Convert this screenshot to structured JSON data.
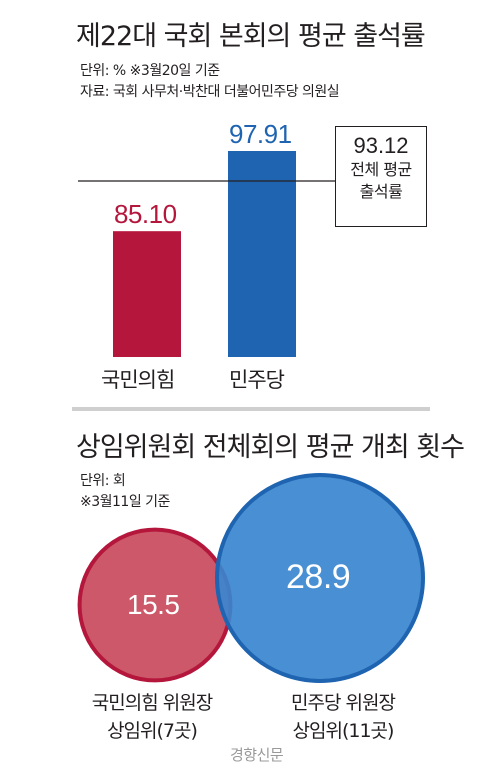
{
  "chart_data": [
    {
      "type": "bar",
      "title": "제22대 국회 본회의 평균 출석률",
      "unit_note": "단위: %  ※3월20일 기준",
      "source": "자료: 국회 사무처·박찬대 더불어민주당 의원실",
      "categories": [
        "국민의힘",
        "민주당"
      ],
      "values": [
        85.1,
        97.91
      ],
      "value_labels": [
        "85.10",
        "97.91"
      ],
      "colors": [
        "#b5173c",
        "#1f64b0"
      ],
      "reference_line": {
        "value": 93.12,
        "value_label": "93.12",
        "label_lines": [
          "전체 평균",
          "출석률"
        ]
      }
    },
    {
      "type": "bubble",
      "title": "상임위원회 전체회의 평균 개최 횟수",
      "unit_note": "단위: 회",
      "date_note": "※3월11일 기준",
      "items": [
        {
          "value": 15.5,
          "value_label": "15.5",
          "label_lines": [
            "국민의힘 위원장",
            "상임위(7곳)"
          ],
          "fill": "#c94a5c",
          "stroke": "#b5173c"
        },
        {
          "value": 28.9,
          "value_label": "28.9",
          "label_lines": [
            "민주당 위원장",
            "상임위(11곳)"
          ],
          "fill": "#3a86cf",
          "stroke": "#1f64b0"
        }
      ]
    }
  ],
  "watermark": "경향신문"
}
